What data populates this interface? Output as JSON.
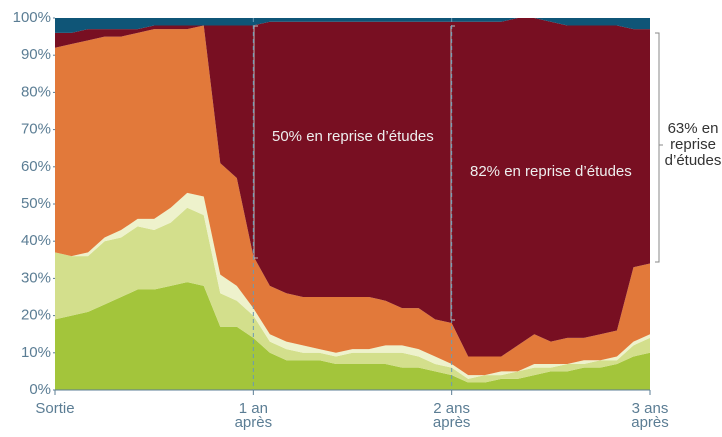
{
  "chart_data": {
    "type": "stacked_area",
    "x": [
      0,
      1,
      2,
      3,
      4,
      5,
      6,
      7,
      8,
      9,
      10,
      11,
      12,
      13,
      14,
      15,
      16,
      17,
      18,
      19,
      20,
      21,
      22,
      23,
      24,
      25,
      26,
      27,
      28,
      29,
      30,
      31,
      32,
      33,
      34,
      35,
      36
    ],
    "xlim": [
      0,
      36
    ],
    "xticks": [
      {
        "value": 0,
        "label": "Sortie"
      },
      {
        "value": 12,
        "label": "1 an après"
      },
      {
        "value": 24,
        "label": "2 ans après"
      },
      {
        "value": 36,
        "label": "3 ans après"
      }
    ],
    "ylim": [
      0,
      100
    ],
    "yticks": [
      {
        "value": 0,
        "label": "0%"
      },
      {
        "value": 10,
        "label": "10%"
      },
      {
        "value": 20,
        "label": "20%"
      },
      {
        "value": 30,
        "label": "30%"
      },
      {
        "value": 40,
        "label": "40%"
      },
      {
        "value": 50,
        "label": "50%"
      },
      {
        "value": 60,
        "label": "60%"
      },
      {
        "value": 70,
        "label": "70%"
      },
      {
        "value": 80,
        "label": "80%"
      },
      {
        "value": 90,
        "label": "90%"
      },
      {
        "value": 100,
        "label": "100%"
      }
    ],
    "series": [
      {
        "color": "#a3c53b",
        "values": [
          19,
          20,
          21,
          23,
          25,
          27,
          27,
          28,
          29,
          28,
          17,
          17,
          14,
          10,
          8,
          8,
          8,
          7,
          7,
          7,
          7,
          6,
          6,
          5,
          4,
          2,
          2,
          3,
          3,
          4,
          5,
          5,
          6,
          6,
          7,
          9,
          10
        ]
      },
      {
        "color": "#d3df8c",
        "values": [
          18,
          16,
          15,
          17,
          16,
          17,
          16,
          17,
          20,
          19,
          9,
          7,
          6,
          3,
          3,
          2,
          2,
          2,
          3,
          3,
          3,
          4,
          3,
          2,
          2,
          1,
          2,
          1,
          2,
          2,
          1,
          2,
          1,
          2,
          1,
          3,
          4
        ]
      },
      {
        "color": "#eef2cc",
        "values": [
          0,
          0,
          1,
          1,
          2,
          2,
          3,
          4,
          4,
          5,
          5,
          4,
          2,
          2,
          2,
          2,
          1,
          1,
          1,
          1,
          2,
          2,
          2,
          2,
          1,
          1,
          0,
          1,
          0,
          1,
          1,
          0,
          1,
          0,
          1,
          1,
          1
        ]
      },
      {
        "color": "#e2793a",
        "values": [
          55,
          57,
          57,
          54,
          52,
          50,
          51,
          48,
          44,
          46,
          30,
          29,
          14,
          13,
          13,
          13,
          14,
          15,
          14,
          14,
          12,
          10,
          11,
          10,
          11,
          5,
          5,
          4,
          7,
          8,
          6,
          7,
          6,
          7,
          7,
          20,
          19
        ]
      },
      {
        "color": "#780f22",
        "values": [
          4,
          3,
          3,
          2,
          2,
          1,
          1,
          1,
          1,
          0,
          37,
          41,
          62,
          71,
          73,
          74,
          74,
          74,
          74,
          74,
          75,
          77,
          77,
          80,
          81,
          90,
          90,
          90,
          88,
          85,
          86,
          84,
          84,
          83,
          82,
          64,
          63
        ]
      },
      {
        "color": "#0f5577",
        "values": [
          4,
          4,
          3,
          3,
          3,
          3,
          2,
          2,
          2,
          2,
          2,
          2,
          2,
          1,
          1,
          1,
          1,
          1,
          1,
          1,
          1,
          1,
          1,
          1,
          1,
          1,
          1,
          1,
          0,
          0,
          1,
          2,
          2,
          2,
          2,
          3,
          3
        ]
      }
    ],
    "annotations": [
      "50% en reprise d’études",
      "82% en reprise d’études",
      "63% en reprise d’études"
    ]
  }
}
